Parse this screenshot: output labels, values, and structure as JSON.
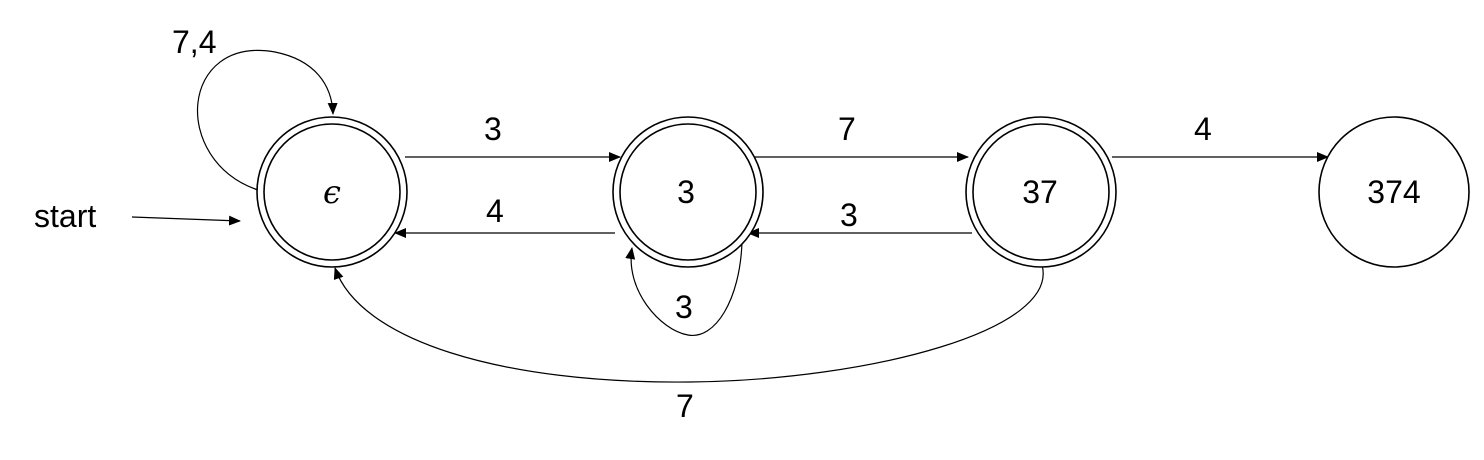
{
  "start_label": "start",
  "states": {
    "q0": {
      "label": "ϵ",
      "accepting": true
    },
    "q1": {
      "label": "3",
      "accepting": true
    },
    "q2": {
      "label": "37",
      "accepting": true
    },
    "q3": {
      "label": "374",
      "accepting": false
    }
  },
  "transitions": {
    "q0_self": {
      "from": "ϵ",
      "to": "ϵ",
      "label": "7,4"
    },
    "q0_q1": {
      "from": "ϵ",
      "to": "3",
      "label": "3"
    },
    "q1_q0": {
      "from": "3",
      "to": "ϵ",
      "label": "4"
    },
    "q1_self": {
      "from": "3",
      "to": "3",
      "label": "3"
    },
    "q1_q2": {
      "from": "3",
      "to": "37",
      "label": "7"
    },
    "q2_q1": {
      "from": "37",
      "to": "3",
      "label": "3"
    },
    "q2_q0": {
      "from": "37",
      "to": "ϵ",
      "label": "7"
    },
    "q2_q3": {
      "from": "37",
      "to": "374",
      "label": "4"
    }
  }
}
